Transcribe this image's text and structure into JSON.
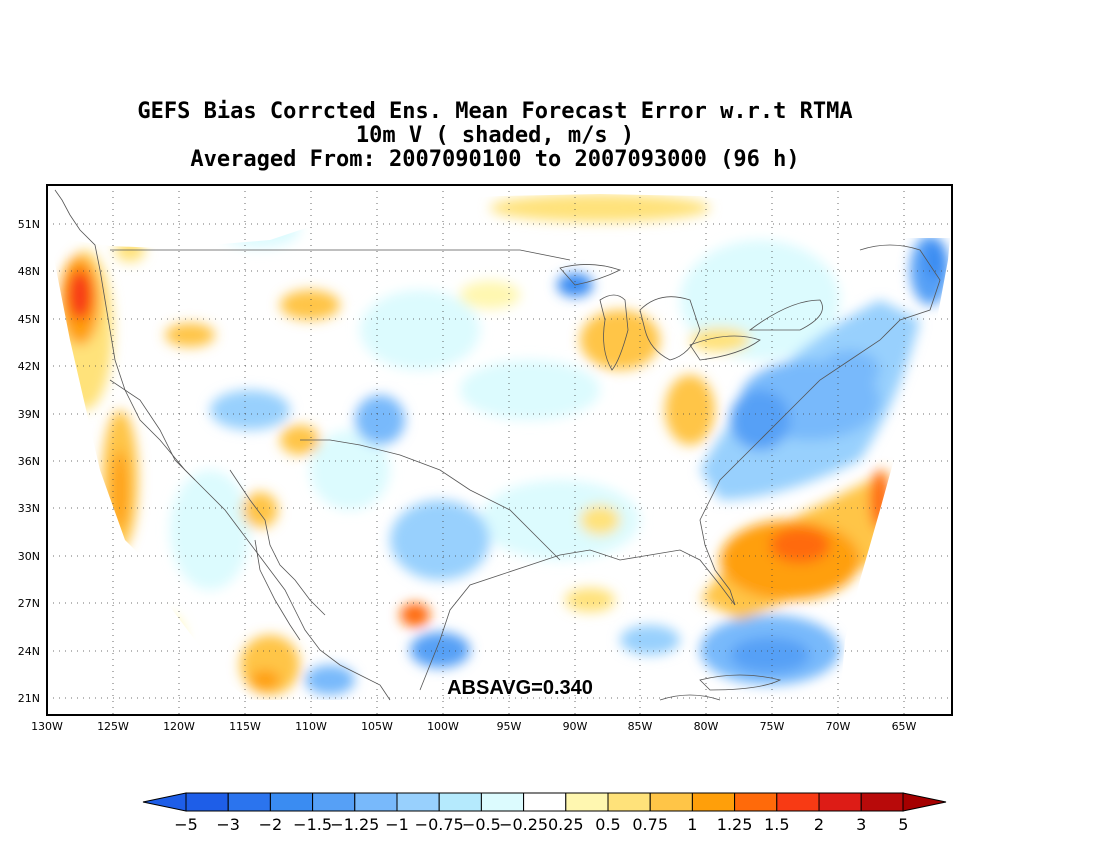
{
  "title": {
    "line1": "GEFS Bias Corrcted Ens. Mean Forecast Error w.r.t RTMA",
    "line2": "10m V ( shaded, m/s )",
    "line3": "Averaged From: 2007090100 to 2007093000 (96 h)"
  },
  "stat_label": "ABSAVG=0.340",
  "axes": {
    "lon_ticks": [
      "130W",
      "125W",
      "120W",
      "115W",
      "110W",
      "105W",
      "100W",
      "95W",
      "90W",
      "85W",
      "80W",
      "75W",
      "70W",
      "65W"
    ],
    "lat_ticks": [
      "51N",
      "48N",
      "45N",
      "42N",
      "39N",
      "36N",
      "33N",
      "30N",
      "27N",
      "24N",
      "21N"
    ]
  },
  "colorbar": {
    "labels": [
      "−5",
      "−3",
      "−2",
      "−1.5",
      "−1.25",
      "−1",
      "−0.75",
      "−0.5",
      "−0.25",
      "0.25",
      "0.5",
      "0.75",
      "1",
      "1.25",
      "1.5",
      "2",
      "3",
      "5"
    ],
    "colors": [
      "#1e5ee8",
      "#2b74ee",
      "#3a8cf2",
      "#56a0f6",
      "#78b9fb",
      "#98d0fd",
      "#b5eafd",
      "#dcfbfe",
      "#ffffff",
      "#fff7b0",
      "#ffe27a",
      "#ffc547",
      "#ff9f0a",
      "#ff6a0a",
      "#f83a14",
      "#dd1c16",
      "#b80a0a"
    ],
    "left_color": "#1e5ee8",
    "right_color": "#a50000"
  },
  "colors": {
    "coast": "#555555",
    "grid": "#444444",
    "frame": "#000000"
  }
}
